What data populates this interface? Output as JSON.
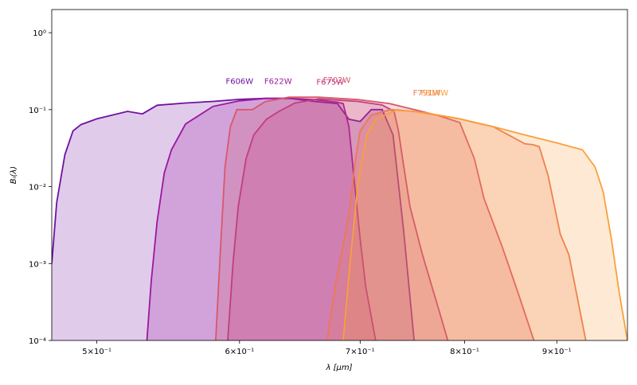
{
  "chart_data": {
    "type": "area",
    "xlabel": "λ [μm]",
    "ylabel": "Bᵢ(λ)",
    "xscale": "log",
    "yscale": "log",
    "xlim": [
      0.472,
      0.985
    ],
    "ylim": [
      0.0001,
      2
    ],
    "xticks": [
      {
        "value": 0.5,
        "label": "5×10⁻¹"
      },
      {
        "value": 0.6,
        "label": "6×10⁻¹"
      },
      {
        "value": 0.7,
        "label": "7×10⁻¹"
      },
      {
        "value": 0.8,
        "label": "8×10⁻¹"
      },
      {
        "value": 0.9,
        "label": "9×10⁻¹"
      }
    ],
    "yticks": [
      {
        "value": 0.0001,
        "label": "10⁻⁴"
      },
      {
        "value": 0.001,
        "label": "10⁻³"
      },
      {
        "value": 0.01,
        "label": "10⁻²"
      },
      {
        "value": 0.1,
        "label": "10⁻¹"
      },
      {
        "value": 1,
        "label": "10⁰"
      }
    ],
    "series": [
      {
        "name": "F606W",
        "color": "#7010a4",
        "x": [
          0.472,
          0.475,
          0.48,
          0.485,
          0.49,
          0.5,
          0.52,
          0.53,
          0.54,
          0.56,
          0.58,
          0.6,
          0.62,
          0.64,
          0.66,
          0.68,
          0.69,
          0.7,
          0.71,
          0.72,
          0.73,
          0.74,
          0.75
        ],
        "values": [
          0.001,
          0.0062,
          0.026,
          0.053,
          0.064,
          0.076,
          0.095,
          0.088,
          0.114,
          0.122,
          0.128,
          0.136,
          0.14,
          0.14,
          0.128,
          0.12,
          0.075,
          0.07,
          0.1,
          0.1,
          0.047,
          0.0027,
          0.0001
        ]
      },
      {
        "name": "F622W",
        "color": "#9c179e",
        "x": [
          0.533,
          0.536,
          0.54,
          0.545,
          0.55,
          0.56,
          0.58,
          0.6,
          0.62,
          0.64,
          0.66,
          0.68,
          0.685,
          0.69,
          0.695,
          0.7,
          0.705,
          0.714
        ],
        "values": [
          0.0001,
          0.0006,
          0.0035,
          0.015,
          0.03,
          0.065,
          0.11,
          0.13,
          0.14,
          0.14,
          0.135,
          0.125,
          0.12,
          0.06,
          0.011,
          0.0021,
          0.0005,
          0.0001
        ]
      },
      {
        "name": "F675W",
        "color": "#bd3786",
        "x": [
          0.591,
          0.595,
          0.599,
          0.605,
          0.611,
          0.621,
          0.631,
          0.644,
          0.664,
          0.698,
          0.72,
          0.731,
          0.735,
          0.739,
          0.746,
          0.758,
          0.772,
          0.783
        ],
        "values": [
          0.0001,
          0.001,
          0.0055,
          0.023,
          0.047,
          0.075,
          0.095,
          0.122,
          0.138,
          0.128,
          0.115,
          0.095,
          0.054,
          0.023,
          0.0055,
          0.0013,
          0.00031,
          0.0001
        ]
      },
      {
        "name": "F702W",
        "color": "#d8576b",
        "x": [
          0.582,
          0.586,
          0.589,
          0.593,
          0.598,
          0.61,
          0.62,
          0.639,
          0.664,
          0.698,
          0.727,
          0.75,
          0.772,
          0.795,
          0.81,
          0.82,
          0.839,
          0.857,
          0.874
        ],
        "values": [
          0.0001,
          0.0021,
          0.018,
          0.06,
          0.1,
          0.1,
          0.127,
          0.145,
          0.145,
          0.135,
          0.12,
          0.1,
          0.085,
          0.068,
          0.023,
          0.007,
          0.0017,
          0.0004,
          0.0001
        ]
      },
      {
        "name": "F791W",
        "color": "#ed7953",
        "x": [
          0.671,
          0.678,
          0.69,
          0.696,
          0.7,
          0.71,
          0.728,
          0.75,
          0.772,
          0.795,
          0.81,
          0.83,
          0.846,
          0.864,
          0.873,
          0.88,
          0.89,
          0.904,
          0.914,
          0.934
        ],
        "values": [
          0.0001,
          0.0005,
          0.0044,
          0.023,
          0.053,
          0.085,
          0.1,
          0.095,
          0.085,
          0.076,
          0.068,
          0.06,
          0.047,
          0.036,
          0.035,
          0.033,
          0.014,
          0.0024,
          0.0013,
          0.0001
        ]
      },
      {
        "name": "F814W",
        "color": "#fb9f3a",
        "x": [
          0.685,
          0.691,
          0.698,
          0.706,
          0.714,
          0.72,
          0.734,
          0.763,
          0.795,
          0.83,
          0.864,
          0.9,
          0.93,
          0.945,
          0.955,
          0.965,
          0.975,
          0.985
        ],
        "values": [
          0.0001,
          0.001,
          0.011,
          0.047,
          0.076,
          0.082,
          0.1,
          0.09,
          0.076,
          0.06,
          0.047,
          0.037,
          0.03,
          0.018,
          0.0085,
          0.0021,
          0.0004,
          0.0001
        ]
      }
    ]
  }
}
